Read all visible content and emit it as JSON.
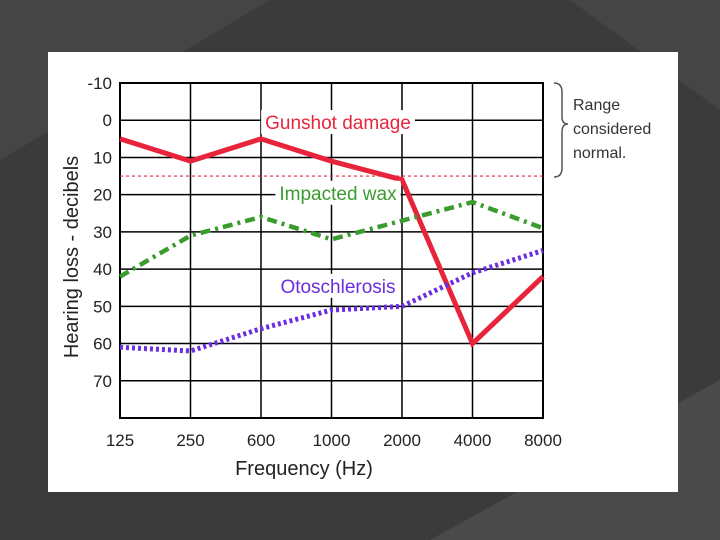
{
  "chart_data": {
    "type": "line",
    "title": "",
    "xlabel": "Frequency (Hz)",
    "ylabel": "Hearing loss - decibels",
    "categories": [
      "125",
      "250",
      "600",
      "1000",
      "2000",
      "4000",
      "8000"
    ],
    "y_ticks": [
      "-10",
      "0",
      "10",
      "20",
      "30",
      "40",
      "50",
      "60",
      "70"
    ],
    "ylim": [
      -10,
      80
    ],
    "y_inverted": true,
    "grid": true,
    "series": [
      {
        "name": "Gunshot damage",
        "values": [
          5,
          11,
          5,
          11,
          16,
          60,
          42
        ],
        "color": "#e8243c",
        "style": "solid"
      },
      {
        "name": "Impacted wax",
        "values": [
          42,
          31,
          26,
          32,
          27,
          22,
          29
        ],
        "color": "#3a9b2e",
        "style": "dash-dot"
      },
      {
        "name": "Otoschlerosis",
        "values": [
          61,
          62,
          56,
          51,
          50,
          41,
          35
        ],
        "color": "#6a2ee0",
        "style": "dotted"
      }
    ],
    "reference_line": {
      "value": 15,
      "color": "#e8243c"
    },
    "annotation": {
      "lines": [
        "Range",
        "considered",
        "normal."
      ]
    }
  }
}
